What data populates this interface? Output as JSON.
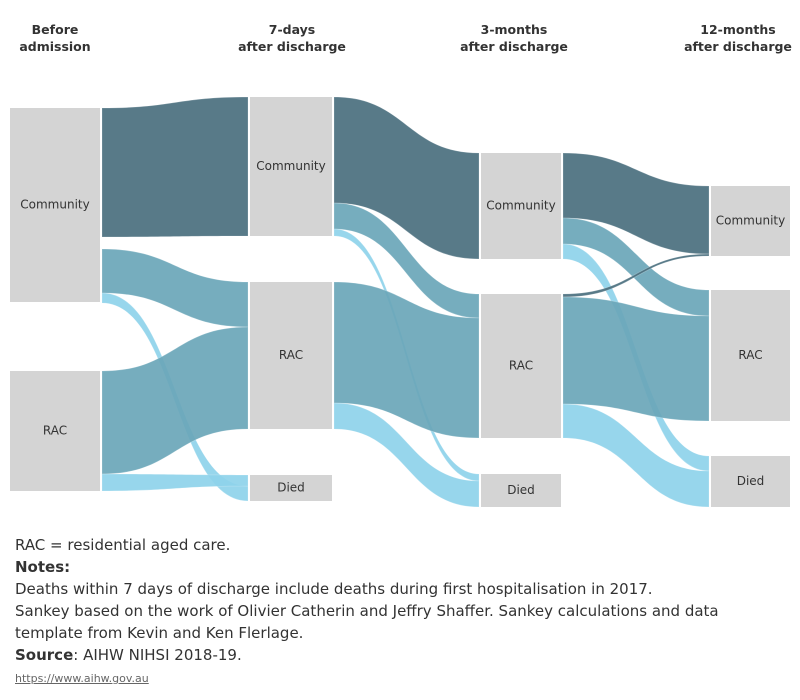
{
  "stages": [
    {
      "title_lines": [
        "Before",
        "admission"
      ],
      "nodes": [
        "Community",
        "RAC"
      ]
    },
    {
      "title_lines": [
        "7-days",
        "after discharge"
      ],
      "nodes": [
        "Community",
        "RAC",
        "Died"
      ]
    },
    {
      "title_lines": [
        "3-months",
        "after discharge"
      ],
      "nodes": [
        "Community",
        "RAC",
        "Died"
      ]
    },
    {
      "title_lines": [
        "12-months",
        "after discharge"
      ],
      "nodes": [
        "Community",
        "RAC",
        "Died"
      ]
    }
  ],
  "footer": {
    "abbreviation": "RAC = residential aged care.",
    "notes_heading": "Notes:",
    "notes": [
      "Deaths within 7 days of discharge include deaths during first hospitalisation in 2017.",
      "Sankey based on the work of Olivier Catherin and Jeffry Shaffer. Sankey calculations and data template from Kevin and Ken Flerlage."
    ],
    "source_label": "Source",
    "source_text": ": AIHW NIHSI 2018-19.",
    "link": "https://www.aihw.gov.au"
  }
}
